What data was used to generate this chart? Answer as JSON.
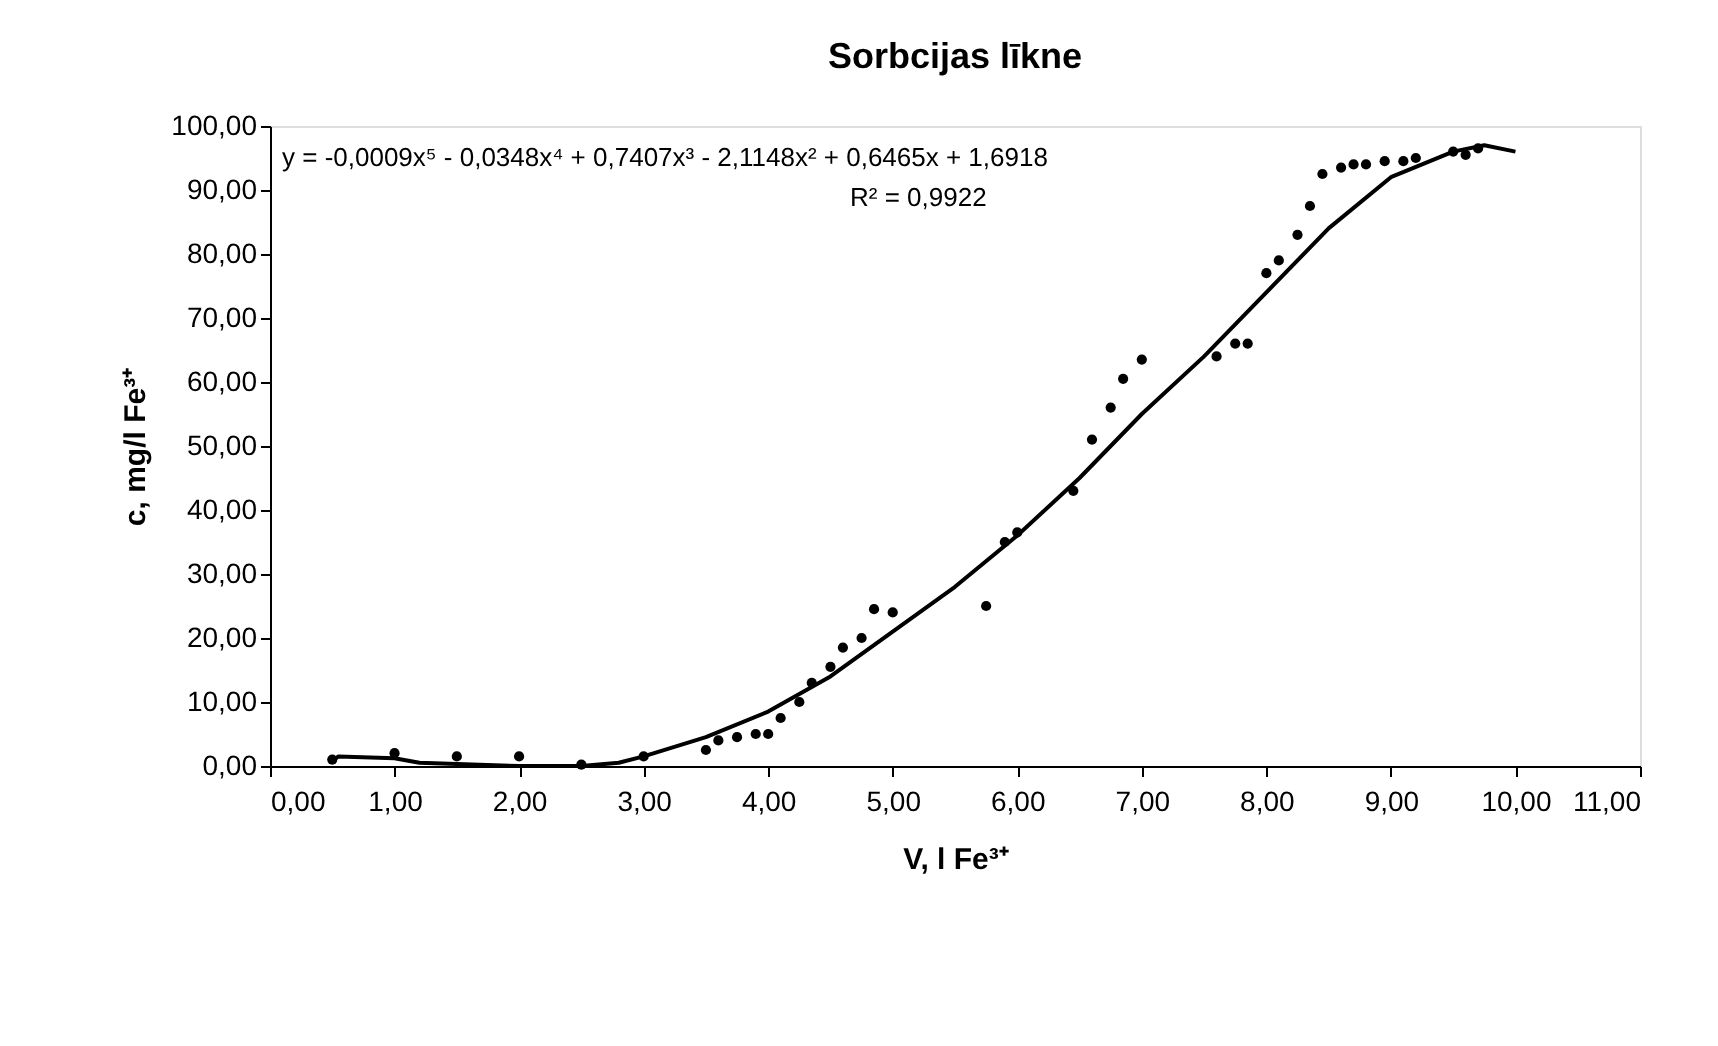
{
  "chart_data": {
    "type": "scatter",
    "title": "Sorbcijas līkne",
    "xlabel": "V, l Fe³⁺",
    "ylabel": "c, mg/l Fe³⁺",
    "xlim": [
      0,
      11
    ],
    "ylim": [
      0,
      100
    ],
    "grid": false,
    "xticks": [
      {
        "value": 0,
        "label": "0,00"
      },
      {
        "value": 1,
        "label": "1,00"
      },
      {
        "value": 2,
        "label": "2,00"
      },
      {
        "value": 3,
        "label": "3,00"
      },
      {
        "value": 4,
        "label": "4,00"
      },
      {
        "value": 5,
        "label": "5,00"
      },
      {
        "value": 6,
        "label": "6,00"
      },
      {
        "value": 7,
        "label": "7,00"
      },
      {
        "value": 8,
        "label": "8,00"
      },
      {
        "value": 9,
        "label": "9,00"
      },
      {
        "value": 10,
        "label": "10,00"
      },
      {
        "value": 11,
        "label": "11,00"
      }
    ],
    "yticks": [
      {
        "value": 0,
        "label": "0,00"
      },
      {
        "value": 10,
        "label": "10,00"
      },
      {
        "value": 20,
        "label": "20,00"
      },
      {
        "value": 30,
        "label": "30,00"
      },
      {
        "value": 40,
        "label": "40,00"
      },
      {
        "value": 50,
        "label": "50,00"
      },
      {
        "value": 60,
        "label": "60,00"
      },
      {
        "value": 70,
        "label": "70,00"
      },
      {
        "value": 80,
        "label": "80,00"
      },
      {
        "value": 90,
        "label": "90,00"
      },
      {
        "value": 100,
        "label": "100,00"
      }
    ],
    "annotations": [
      "y = -0,0009x⁵ - 0,0348x⁴ + 0,7407x³ - 2,1148x² + 0,6465x + 1,6918",
      "R² = 0,9922"
    ],
    "series": [
      {
        "marker": "circle",
        "color": "#000000",
        "x": [
          0.5,
          1.0,
          1.5,
          2.0,
          2.5,
          3.0,
          3.5,
          3.6,
          3.75,
          3.9,
          4.0,
          4.1,
          4.25,
          4.35,
          4.5,
          4.6,
          4.75,
          4.85,
          5.0,
          5.75,
          5.9,
          6.0,
          6.45,
          6.6,
          6.75,
          6.85,
          7.0,
          7.6,
          7.75,
          7.85,
          8.0,
          8.1,
          8.25,
          8.35,
          8.45,
          8.6,
          8.7,
          8.8,
          8.95,
          9.1,
          9.2,
          9.5,
          9.6,
          9.7
        ],
        "values": [
          1,
          2,
          1.5,
          1.5,
          0.2,
          1.5,
          2.5,
          4,
          4.5,
          5,
          5,
          7.5,
          10,
          13,
          15.5,
          18.5,
          20,
          24.5,
          24,
          25,
          35,
          36.5,
          43,
          51,
          56,
          60.5,
          63.5,
          64,
          66,
          66,
          77,
          79,
          83,
          87.5,
          92.5,
          93.5,
          94,
          94,
          94.5,
          94.5,
          95,
          96,
          95.5,
          96.5
        ]
      },
      {
        "type": "line",
        "marker": "none",
        "line_style": "solid",
        "color": "#000000",
        "x": [
          0.5,
          0.55,
          1.0,
          1.2,
          1.5,
          2.0,
          2.5,
          2.8,
          3.0,
          3.5,
          4.0,
          4.5,
          5.0,
          5.5,
          6.0,
          6.5,
          7.0,
          7.5,
          8.0,
          8.5,
          9.0,
          9.5,
          9.75,
          10.0
        ],
        "values": [
          0.8,
          1.5,
          1.2,
          0.5,
          0.3,
          0,
          0,
          0.5,
          1.5,
          4.5,
          8.5,
          14,
          21,
          28,
          36,
          45,
          55,
          64,
          74,
          84,
          92,
          96,
          97,
          96
        ]
      }
    ]
  }
}
